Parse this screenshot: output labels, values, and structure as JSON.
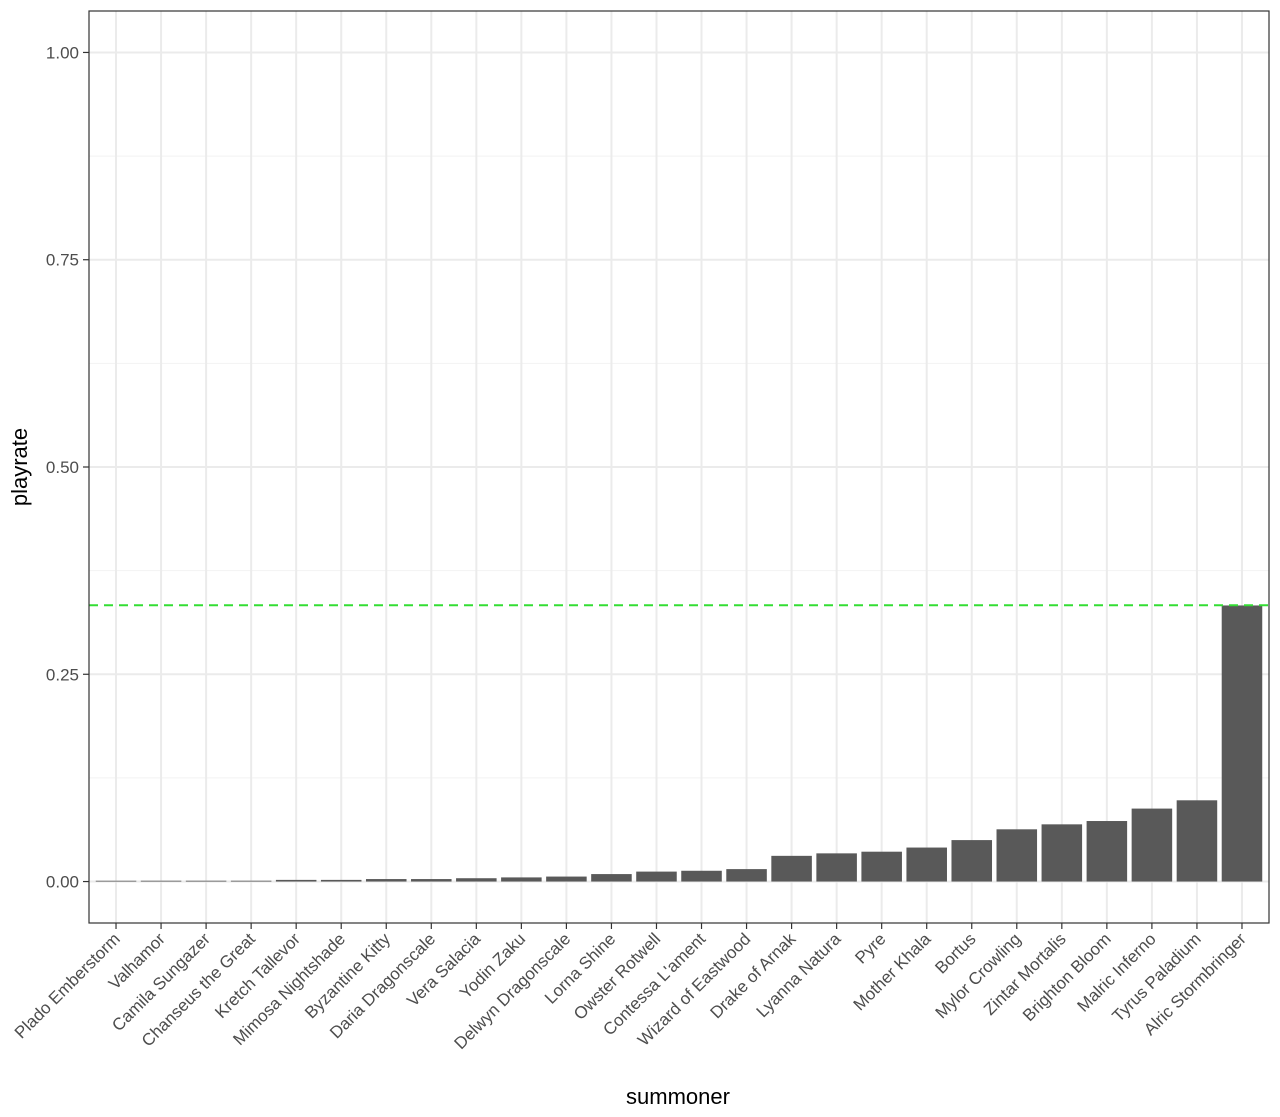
{
  "chart_data": {
    "type": "bar",
    "xlabel": "summoner",
    "ylabel": "playrate",
    "ylim": [
      -0.05,
      1.05
    ],
    "y_ticks": [
      0.0,
      0.25,
      0.5,
      0.75,
      1.0
    ],
    "y_tick_labels": [
      "0.00",
      "0.25",
      "0.50",
      "0.75",
      "1.00"
    ],
    "categories": [
      "Plado Emberstorm",
      "Valhamor",
      "Camila Sungazer",
      "Chanseus the Great",
      "Kretch Tallevor",
      "Mimosa Nightshade",
      "Byzantine Kitty",
      "Daria Dragonscale",
      "Vera Salacia",
      "Yodin Zaku",
      "Delwyn Dragonscale",
      "Lorna Shine",
      "Owster Rotwell",
      "Contessa L'ament",
      "Wizard of Eastwood",
      "Drake of Arnak",
      "Lyanna Natura",
      "Pyre",
      "Mother Khala",
      "Bortus",
      "Mylor Crowling",
      "Zintar Mortalis",
      "Brighton Bloom",
      "Malric Inferno",
      "Tyrus Paladium",
      "Alric Stormbringer"
    ],
    "values": [
      0.0005,
      0.001,
      0.001,
      0.001,
      0.002,
      0.002,
      0.003,
      0.003,
      0.004,
      0.005,
      0.006,
      0.009,
      0.012,
      0.013,
      0.015,
      0.031,
      0.034,
      0.036,
      0.041,
      0.05,
      0.063,
      0.069,
      0.073,
      0.088,
      0.098,
      0.333
    ],
    "reference_line": {
      "y": 0.3333,
      "style": "dashed",
      "color": "#33dd33"
    },
    "bar_color": "#595959",
    "grid": true,
    "theme": "bw"
  }
}
